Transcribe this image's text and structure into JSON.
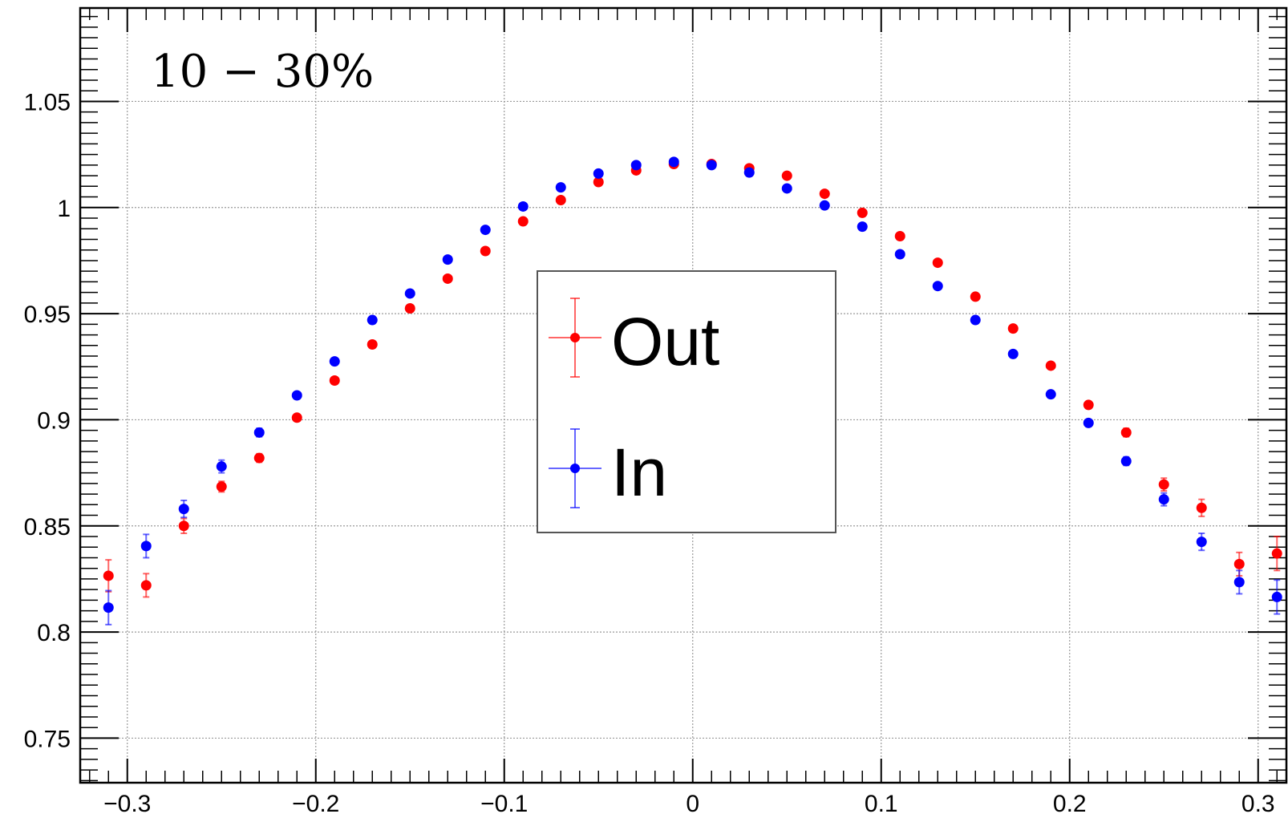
{
  "chart_data": {
    "type": "scatter",
    "annotation": "10 − 30%",
    "xlim": [
      -0.325,
      0.315
    ],
    "ylim": [
      0.729,
      1.094
    ],
    "grid": true,
    "x_ticks": [
      -0.3,
      -0.2,
      -0.1,
      0,
      0.1,
      0.2,
      0.3
    ],
    "x_tick_labels": [
      "−0.3",
      "−0.2",
      "−0.1",
      "0",
      "0.1",
      "0.2",
      "0.3"
    ],
    "y_ticks": [
      0.75,
      0.8,
      0.85,
      0.9,
      0.95,
      1.0,
      1.05
    ],
    "y_tick_labels": [
      "0.75",
      "0.8",
      "0.85",
      "0.9",
      "0.95",
      "1",
      "1.05"
    ],
    "legend_position": "center",
    "x": [
      -0.31,
      -0.29,
      -0.27,
      -0.25,
      -0.23,
      -0.21,
      -0.19,
      -0.17,
      -0.15,
      -0.13,
      -0.11,
      -0.09,
      -0.07,
      -0.05,
      -0.03,
      -0.01,
      0.01,
      0.03,
      0.05,
      0.07,
      0.09,
      0.11,
      0.13,
      0.15,
      0.17,
      0.19,
      0.21,
      0.23,
      0.25,
      0.27,
      0.29,
      0.31
    ],
    "series": [
      {
        "name": "Out",
        "color": "#ff0000",
        "values": [
          0.8265,
          0.822,
          0.85,
          0.8685,
          0.882,
          0.901,
          0.9185,
          0.9355,
          0.9525,
          0.9665,
          0.9795,
          0.9935,
          1.0035,
          1.012,
          1.0175,
          1.0205,
          1.0205,
          1.0185,
          1.015,
          1.0065,
          0.9975,
          0.9865,
          0.974,
          0.958,
          0.943,
          0.9255,
          0.907,
          0.894,
          0.8695,
          0.8585,
          0.832,
          0.837
        ],
        "errors": [
          0.0075,
          0.0055,
          0.0035,
          0.0025,
          0.002,
          0.0015,
          0.0012,
          0.001,
          0.001,
          0.001,
          0.001,
          0.001,
          0.001,
          0.001,
          0.001,
          0.001,
          0.001,
          0.001,
          0.001,
          0.001,
          0.001,
          0.001,
          0.001,
          0.001,
          0.0012,
          0.0012,
          0.0015,
          0.002,
          0.003,
          0.004,
          0.0055,
          0.008
        ]
      },
      {
        "name": "In",
        "color": "#0000ff",
        "values": [
          0.8115,
          0.8405,
          0.858,
          0.878,
          0.894,
          0.9115,
          0.9275,
          0.947,
          0.9595,
          0.9755,
          0.9895,
          1.0005,
          1.0095,
          1.016,
          1.02,
          1.0215,
          1.02,
          1.0165,
          1.009,
          1.001,
          0.991,
          0.978,
          0.963,
          0.947,
          0.931,
          0.912,
          0.8985,
          0.8805,
          0.8625,
          0.8425,
          0.8235,
          0.8165
        ],
        "errors": [
          0.008,
          0.0055,
          0.004,
          0.003,
          0.002,
          0.0015,
          0.0012,
          0.001,
          0.001,
          0.001,
          0.001,
          0.001,
          0.001,
          0.001,
          0.001,
          0.001,
          0.001,
          0.001,
          0.001,
          0.001,
          0.001,
          0.001,
          0.001,
          0.001,
          0.0012,
          0.0012,
          0.0015,
          0.002,
          0.003,
          0.004,
          0.0055,
          0.008
        ]
      }
    ]
  }
}
